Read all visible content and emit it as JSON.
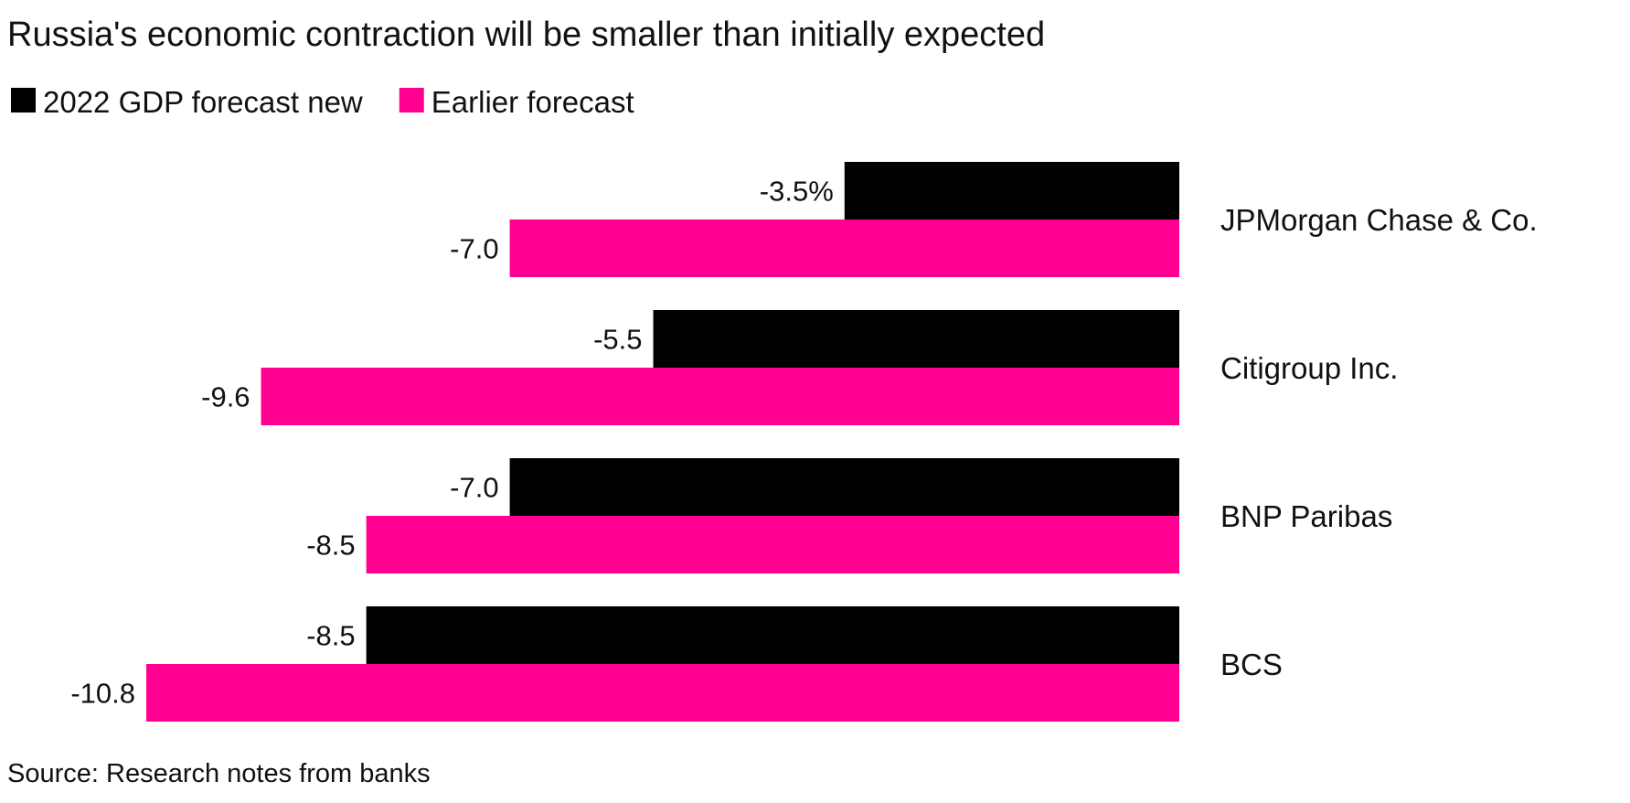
{
  "chart_data": {
    "type": "bar",
    "orientation": "horizontal",
    "title": "Russia's economic contraction will be smaller than initially expected",
    "categories": [
      "JPMorgan Chase & Co.",
      "Citigroup Inc.",
      "BNP Paribas",
      "BCS"
    ],
    "series": [
      {
        "name": "2022 GDP forecast new",
        "color": "#000000",
        "values": [
          -3.5,
          -5.5,
          -7.0,
          -8.5
        ],
        "labels": [
          "-3.5%",
          "-5.5",
          "-7.0",
          "-8.5"
        ]
      },
      {
        "name": "Earlier forecast",
        "color": "#ff0090",
        "values": [
          -7.0,
          -9.6,
          -8.5,
          -10.8
        ],
        "labels": [
          "-7.0",
          "-9.6",
          "-8.5",
          "-10.8"
        ]
      }
    ],
    "xlim": [
      -10.8,
      0
    ],
    "legend_position": "top-left",
    "grid": false,
    "source": "Source: Research notes from banks"
  }
}
